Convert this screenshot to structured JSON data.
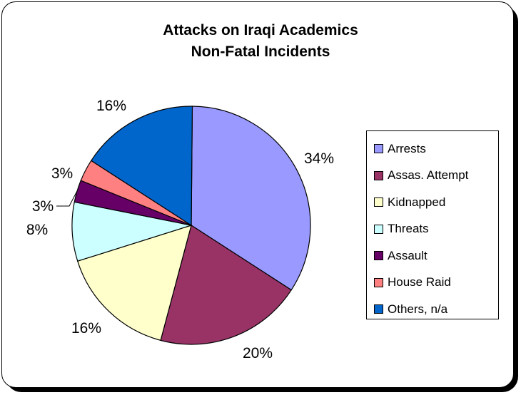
{
  "colors": {
    "Arrests": "#9999FF",
    "Assas. Attempt": "#993366",
    "Kidnapped": "#FFFFCC",
    "Threats": "#CCFFFF",
    "Assault": "#660066",
    "House Raid": "#FF8080",
    "Others, n/a": "#0066CC"
  },
  "chart_data": {
    "type": "pie",
    "title": "Attacks on Iraqi Academics",
    "subtitle": "Non-Fatal Incidents",
    "slices": [
      {
        "label": "Arrests",
        "value": 34,
        "display": "34%"
      },
      {
        "label": "Assas. Attempt",
        "value": 20,
        "display": "20%"
      },
      {
        "label": "Kidnapped",
        "value": 16,
        "display": "16%"
      },
      {
        "label": "Threats",
        "value": 8,
        "display": "8%"
      },
      {
        "label": "Assault",
        "value": 3,
        "display": "3%"
      },
      {
        "label": "House Raid",
        "value": 3,
        "display": "3%"
      },
      {
        "label": "Others, n/a",
        "value": 16,
        "display": "16%"
      }
    ],
    "legend": {
      "placement": "right",
      "entries": [
        "Arrests",
        "Assas. Attempt",
        "Kidnapped",
        "Threats",
        "Assault",
        "House Raid",
        "Others, n/a"
      ]
    }
  }
}
